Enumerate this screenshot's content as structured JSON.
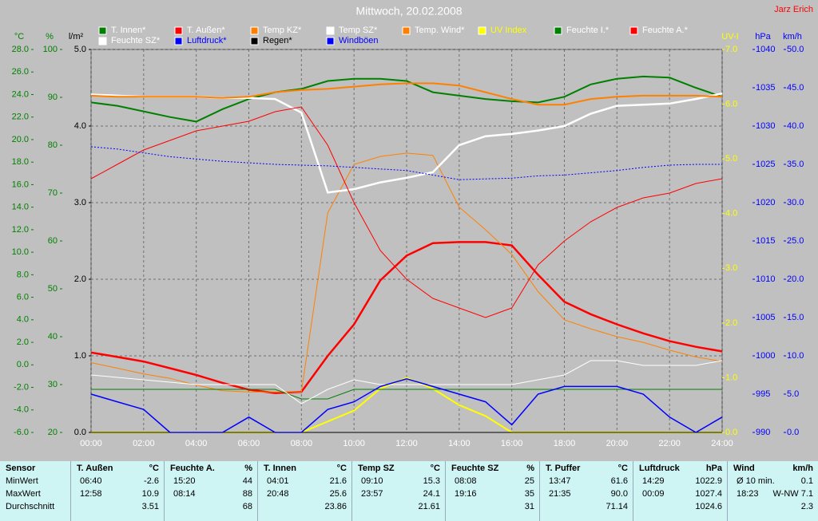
{
  "chart_data": {
    "type": "line",
    "title": "Mittwoch, 20.02.2008",
    "author": "Jarz Erich",
    "xlim": [
      0,
      24
    ],
    "xticks": [
      {
        "value": 0,
        "label": "00:00"
      },
      {
        "value": 2,
        "label": "02:00"
      },
      {
        "value": 4,
        "label": "04:00"
      },
      {
        "value": 6,
        "label": "06:00"
      },
      {
        "value": 8,
        "label": "08:00"
      },
      {
        "value": 10,
        "label": "10:00"
      },
      {
        "value": 12,
        "label": "12:00"
      },
      {
        "value": 14,
        "label": "14:00"
      },
      {
        "value": 16,
        "label": "16:00"
      },
      {
        "value": 18,
        "label": "18:00"
      },
      {
        "value": 20,
        "label": "20:00"
      },
      {
        "value": 22,
        "label": "22:00"
      },
      {
        "value": 24,
        "label": "24:00"
      }
    ],
    "x": [
      0,
      1,
      2,
      3,
      4,
      5,
      6,
      7,
      8,
      9,
      10,
      11,
      12,
      13,
      14,
      15,
      16,
      17,
      18,
      19,
      20,
      21,
      22,
      23,
      24
    ],
    "y_axes": [
      {
        "label": "°C",
        "color": "#008000",
        "lim": [
          -6,
          28
        ],
        "ticks": [
          {
            "value": 28,
            "label": "28.0"
          },
          {
            "value": 26,
            "label": "26.0"
          },
          {
            "value": 24,
            "label": "24.0"
          },
          {
            "value": 22,
            "label": "22.0"
          },
          {
            "value": 20,
            "label": "20.0"
          },
          {
            "value": 18,
            "label": "18.0"
          },
          {
            "value": 16,
            "label": "16.0"
          },
          {
            "value": 14,
            "label": "14.0"
          },
          {
            "value": 12,
            "label": "12.0"
          },
          {
            "value": 10,
            "label": "10.0"
          },
          {
            "value": 8,
            "label": "8.0"
          },
          {
            "value": 6,
            "label": "6.0"
          },
          {
            "value": 4,
            "label": "4.0"
          },
          {
            "value": 2,
            "label": "2.0"
          },
          {
            "value": 0,
            "label": "0.0"
          },
          {
            "value": -2,
            "label": "-2.0"
          },
          {
            "value": -4,
            "label": "-4.0"
          },
          {
            "value": -6,
            "label": "-6.0"
          }
        ]
      },
      {
        "label": "%",
        "color": "#008000",
        "lim": [
          20,
          100
        ],
        "ticks": [
          100,
          90,
          80,
          70,
          60,
          50,
          40,
          30,
          20
        ]
      },
      {
        "label": "l/m²",
        "color": "#000000",
        "lim": [
          0,
          5
        ],
        "grid": true,
        "ticks": [
          {
            "value": 5,
            "label": "5.0"
          },
          {
            "value": 4,
            "label": "4.0"
          },
          {
            "value": 3,
            "label": "3.0"
          },
          {
            "value": 2,
            "label": "2.0"
          },
          {
            "value": 1,
            "label": "1.0"
          },
          {
            "value": 0,
            "label": "0.0"
          }
        ]
      },
      {
        "label": "UV-I",
        "color": "#ffff00",
        "lim": [
          0,
          7
        ],
        "ticks": [
          {
            "value": 7,
            "label": "7.0"
          },
          {
            "value": 6,
            "label": "6.0"
          },
          {
            "value": 5,
            "label": "5.0"
          },
          {
            "value": 4,
            "label": "4.0"
          },
          {
            "value": 3,
            "label": "3.0"
          },
          {
            "value": 2,
            "label": "2.0"
          },
          {
            "value": 1,
            "label": "1.0"
          },
          {
            "value": 0,
            "label": "0.0"
          }
        ]
      },
      {
        "label": "hPa",
        "color": "#0000ff",
        "lim": [
          990,
          1040
        ],
        "ticks": [
          1040,
          1035,
          1030,
          1025,
          1020,
          1015,
          1010,
          1005,
          1000,
          995,
          990
        ]
      },
      {
        "label": "km/h",
        "color": "#0000ff",
        "lim": [
          0,
          50
        ],
        "ticks": [
          {
            "value": 50,
            "label": "50.0"
          },
          {
            "value": 45,
            "label": "45.0"
          },
          {
            "value": 40,
            "label": "40.0"
          },
          {
            "value": 35,
            "label": "35.0"
          },
          {
            "value": 30,
            "label": "30.0"
          },
          {
            "value": 25,
            "label": "25.0"
          },
          {
            "value": 20,
            "label": "20.0"
          },
          {
            "value": 15,
            "label": "15.0"
          },
          {
            "value": 10,
            "label": "10.0"
          },
          {
            "value": 5,
            "label": "5.0"
          },
          {
            "value": 0,
            "label": "0.0"
          }
        ]
      }
    ],
    "series": [
      {
        "name": "T. Innen*",
        "color": "#008000",
        "label_color": "#ffffff",
        "axis": 0,
        "values": [
          23.3,
          23.0,
          22.5,
          22.0,
          21.6,
          22.7,
          23.6,
          24.2,
          24.5,
          25.2,
          25.4,
          25.4,
          25.2,
          24.2,
          23.9,
          23.6,
          23.4,
          23.3,
          23.8,
          24.9,
          25.4,
          25.6,
          25.5,
          24.6,
          23.8
        ]
      },
      {
        "name": "T. Außen*",
        "color": "#ff0000",
        "label_color": "#ffffff",
        "axis": 0,
        "values": [
          1.1,
          0.7,
          0.3,
          -0.3,
          -0.9,
          -1.6,
          -2.2,
          -2.5,
          -2.4,
          0.8,
          3.6,
          7.5,
          9.7,
          10.8,
          10.9,
          10.9,
          10.6,
          8.0,
          5.6,
          4.5,
          3.6,
          2.8,
          2.1,
          1.6,
          1.2
        ]
      },
      {
        "name": "Temp KZ*",
        "color": "#ff8000",
        "label_color": "#ffffff",
        "axis": 0,
        "values": [
          0.2,
          -0.3,
          -0.8,
          -1.2,
          -1.8,
          -2.3,
          -2.4,
          -2.4,
          -2.4,
          13.5,
          17.8,
          18.5,
          18.8,
          18.6,
          14.0,
          12.0,
          9.8,
          6.5,
          4.0,
          3.2,
          2.5,
          2.0,
          1.3,
          0.7,
          0.3
        ]
      },
      {
        "name": "Temp SZ*",
        "color": "#ffffff",
        "label_color": "#ffffff",
        "axis": 0,
        "values": [
          24.0,
          23.9,
          23.8,
          23.8,
          23.8,
          23.7,
          23.7,
          23.6,
          22.4,
          15.3,
          15.6,
          16.2,
          16.6,
          17.1,
          19.5,
          20.3,
          20.5,
          20.8,
          21.2,
          22.3,
          23.0,
          23.1,
          23.2,
          23.6,
          24.1
        ]
      },
      {
        "name": "Temp. Wind*",
        "color": "#ff8000",
        "label_color": "#ffffff",
        "axis": 0,
        "values": [
          23.9,
          23.8,
          23.8,
          23.8,
          23.8,
          23.7,
          23.8,
          24.2,
          24.4,
          24.5,
          24.7,
          24.9,
          25.0,
          25.0,
          24.8,
          24.2,
          23.6,
          23.1,
          23.1,
          23.6,
          23.8,
          23.9,
          23.9,
          23.9,
          23.8
        ]
      },
      {
        "name": "UV Index",
        "color": "#ffff00",
        "label_color": "#ffff00",
        "axis": 3,
        "values": [
          0,
          0,
          0,
          0,
          0,
          0,
          0,
          0,
          0,
          0.2,
          0.4,
          0.8,
          1.0,
          0.8,
          0.5,
          0.3,
          0,
          0,
          0,
          0,
          0,
          0,
          0,
          0,
          0
        ]
      },
      {
        "name": "Feuchte I.*",
        "color": "#008000",
        "label_color": "#ffffff",
        "axis": 1,
        "values": [
          29,
          29,
          29,
          29,
          29,
          29,
          29,
          29,
          27,
          27,
          29,
          29,
          29,
          29,
          29,
          29,
          29,
          29,
          29,
          29,
          29,
          29,
          29,
          29,
          29
        ]
      },
      {
        "name": "Feuchte A.*",
        "color": "#ff0000",
        "label_color": "#ffffff",
        "axis": 1,
        "values": [
          73,
          76,
          79,
          81,
          83,
          84,
          85,
          87,
          88,
          80,
          68,
          58,
          52,
          48,
          46,
          44,
          46,
          55,
          60,
          64,
          67,
          69,
          70,
          72,
          73
        ]
      },
      {
        "name": "Feuchte SZ*",
        "color": "#ffffff",
        "label_color": "#ffffff",
        "axis": 1,
        "values": [
          32,
          31.5,
          31,
          30.5,
          30,
          30,
          30,
          30,
          26,
          29,
          31,
          30,
          30,
          30,
          30,
          30,
          30,
          31,
          32,
          35,
          35,
          34,
          34,
          34,
          35
        ]
      },
      {
        "name": "Luftdruck*",
        "color": "#0000ff",
        "label_color": "#0000ff",
        "axis": 4,
        "dash": true,
        "values": [
          1027.3,
          1027.0,
          1026.5,
          1026.0,
          1025.7,
          1025.4,
          1025.2,
          1025.0,
          1024.9,
          1024.8,
          1024.6,
          1024.4,
          1024.2,
          1023.6,
          1023.0,
          1023.1,
          1023.2,
          1023.5,
          1023.6,
          1023.9,
          1024.2,
          1024.6,
          1024.9,
          1025.0,
          1025.0
        ]
      },
      {
        "name": "Regen*",
        "color": "#000000",
        "label_color": "#000000",
        "axis": 2,
        "values": [
          0,
          0,
          0,
          0,
          0,
          0,
          0,
          0,
          0,
          0,
          0,
          0,
          0,
          0,
          0,
          0,
          0,
          0,
          0,
          0,
          0,
          0,
          0,
          0,
          0
        ]
      },
      {
        "name": "Windböen",
        "color": "#0000ff",
        "label_color": "#0000ff",
        "axis": 5,
        "values": [
          5,
          4,
          3,
          0,
          0,
          0,
          2,
          0,
          0,
          3,
          4,
          6,
          7,
          6,
          5,
          4,
          1,
          5,
          6,
          6,
          6,
          5,
          2,
          0,
          2
        ]
      }
    ]
  },
  "table": {
    "row_labels": [
      "Sensor",
      "MinWert",
      "MaxWert",
      "Durchschnitt"
    ],
    "columns": [
      {
        "name": "T. Außen",
        "unit": "°C",
        "min_time": "06:40",
        "min": "-2.6",
        "max_time": "12:58",
        "max": "10.9",
        "avg": "3.51"
      },
      {
        "name": "Feuchte A.",
        "unit": "%",
        "min_time": "15:20",
        "min": "44",
        "max_time": "08:14",
        "max": "88",
        "avg": "68"
      },
      {
        "name": "T. Innen",
        "unit": "°C",
        "min_time": "04:01",
        "min": "21.6",
        "max_time": "20:48",
        "max": "25.6",
        "avg": "23.86"
      },
      {
        "name": "Temp SZ",
        "unit": "°C",
        "min_time": "09:10",
        "min": "15.3",
        "max_time": "23:57",
        "max": "24.1",
        "avg": "21.61"
      },
      {
        "name": "Feuchte SZ",
        "unit": "%",
        "min_time": "08:08",
        "min": "25",
        "max_time": "19:16",
        "max": "35",
        "avg": "31"
      },
      {
        "name": "T. Puffer",
        "unit": "°C",
        "min_time": "13:47",
        "min": "61.6",
        "max_time": "21:35",
        "max": "90.0",
        "avg": "71.14"
      },
      {
        "name": "Luftdruck",
        "unit": "hPa",
        "min_time": "14:29",
        "min": "1022.9",
        "max_time": "00:09",
        "max": "1027.4",
        "avg": "1024.6"
      },
      {
        "name": "Wind",
        "unit": "km/h",
        "min_time": "Ø 10 min.",
        "min": "0.1",
        "max_time": "18:23",
        "max": "W-NW 7.1",
        "avg": "2.3"
      }
    ]
  }
}
